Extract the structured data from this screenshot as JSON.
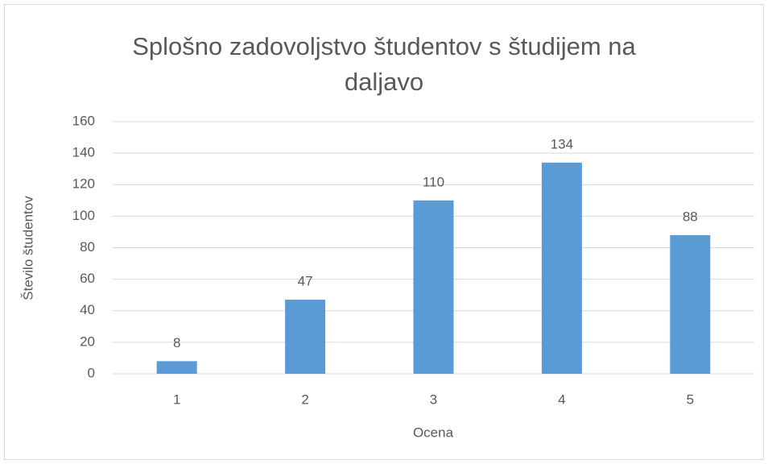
{
  "chart_data": {
    "type": "bar",
    "title": "Splošno zadovoljstvo študentov s študijem na daljavo",
    "x_label": "Ocena",
    "y_label": "Število študentov",
    "categories": [
      "1",
      "2",
      "3",
      "4",
      "5"
    ],
    "values": [
      8,
      47,
      110,
      134,
      88
    ],
    "color": "#5b9bd5",
    "ylim": [
      0,
      160
    ],
    "yticks": [
      0,
      20,
      40,
      60,
      80,
      100,
      120,
      140,
      160
    ],
    "grid": true
  }
}
